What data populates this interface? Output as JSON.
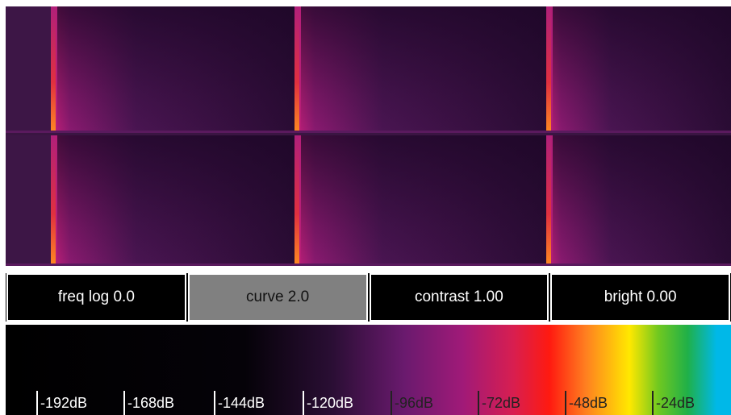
{
  "controls": [
    "freq log 0.0",
    "curve 2.0",
    "contrast 1.00",
    "bright 0.00"
  ],
  "colorbar": {
    "labels": [
      "-192dB",
      "-168dB",
      "-144dB",
      "-120dB",
      "-96dB",
      "-72dB",
      "-48dB",
      "-24dB"
    ]
  }
}
